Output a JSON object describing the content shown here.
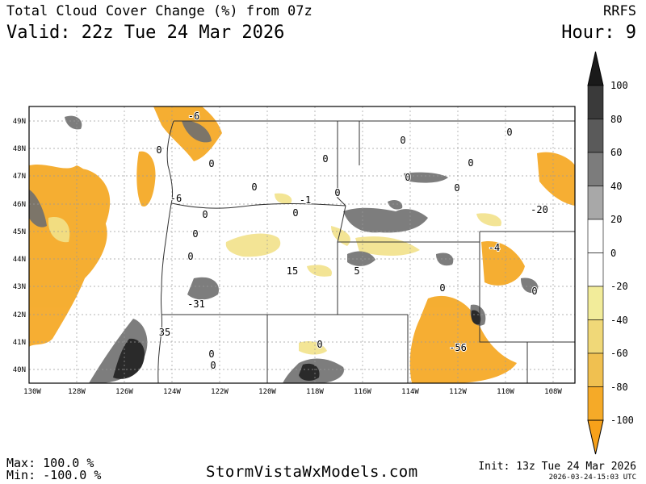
{
  "header": {
    "title": "Total Cloud Cover Change (%) from 07z",
    "valid": "Valid: 22z Tue 24 Mar 2026",
    "model": "RRFS",
    "hour": "Hour: 9"
  },
  "footer": {
    "max": "Max: 100.0 %",
    "min": "Min: -100.0 %",
    "brand": "StormVistaWxModels.com",
    "init": "Init: 13z Tue 24 Mar 2026",
    "stamp": "2026-03-24-15:03 UTC"
  },
  "map": {
    "lat_labels": [
      "49N",
      "48N",
      "47N",
      "46N",
      "45N",
      "44N",
      "43N",
      "42N",
      "41N",
      "40N"
    ],
    "lon_labels": [
      "130W",
      "128W",
      "126W",
      "124W",
      "122W",
      "120W",
      "118W",
      "116W",
      "114W",
      "112W",
      "110W",
      "108W"
    ],
    "contour_labels": [
      "-6",
      "0",
      "0",
      "0",
      "-6",
      "0",
      "0",
      "0",
      "-1",
      "0",
      "0",
      "0",
      "0",
      "0",
      "0",
      "-20",
      "0",
      "0",
      "-4",
      "15",
      "5",
      "0",
      "0",
      "-31",
      "35",
      "0",
      "0",
      "0",
      "-56"
    ]
  },
  "colorbar": {
    "labels": [
      "100",
      "80",
      "60",
      "40",
      "20",
      "0",
      "-20",
      "-40",
      "-60",
      "-80",
      "-100"
    ],
    "colors": {
      "pos_100": "#1a1a1a",
      "pos_80": "#3a3a3a",
      "pos_60": "#5a5a5a",
      "pos_40": "#7c7c7c",
      "pos_20": "#a8a8a8",
      "zero": "#ffffff",
      "neg_20": "#f2ec9a",
      "neg_40": "#f0d878",
      "neg_60": "#f0c050",
      "neg_80": "#f5aa28",
      "neg_100": "#f7a11a"
    }
  }
}
